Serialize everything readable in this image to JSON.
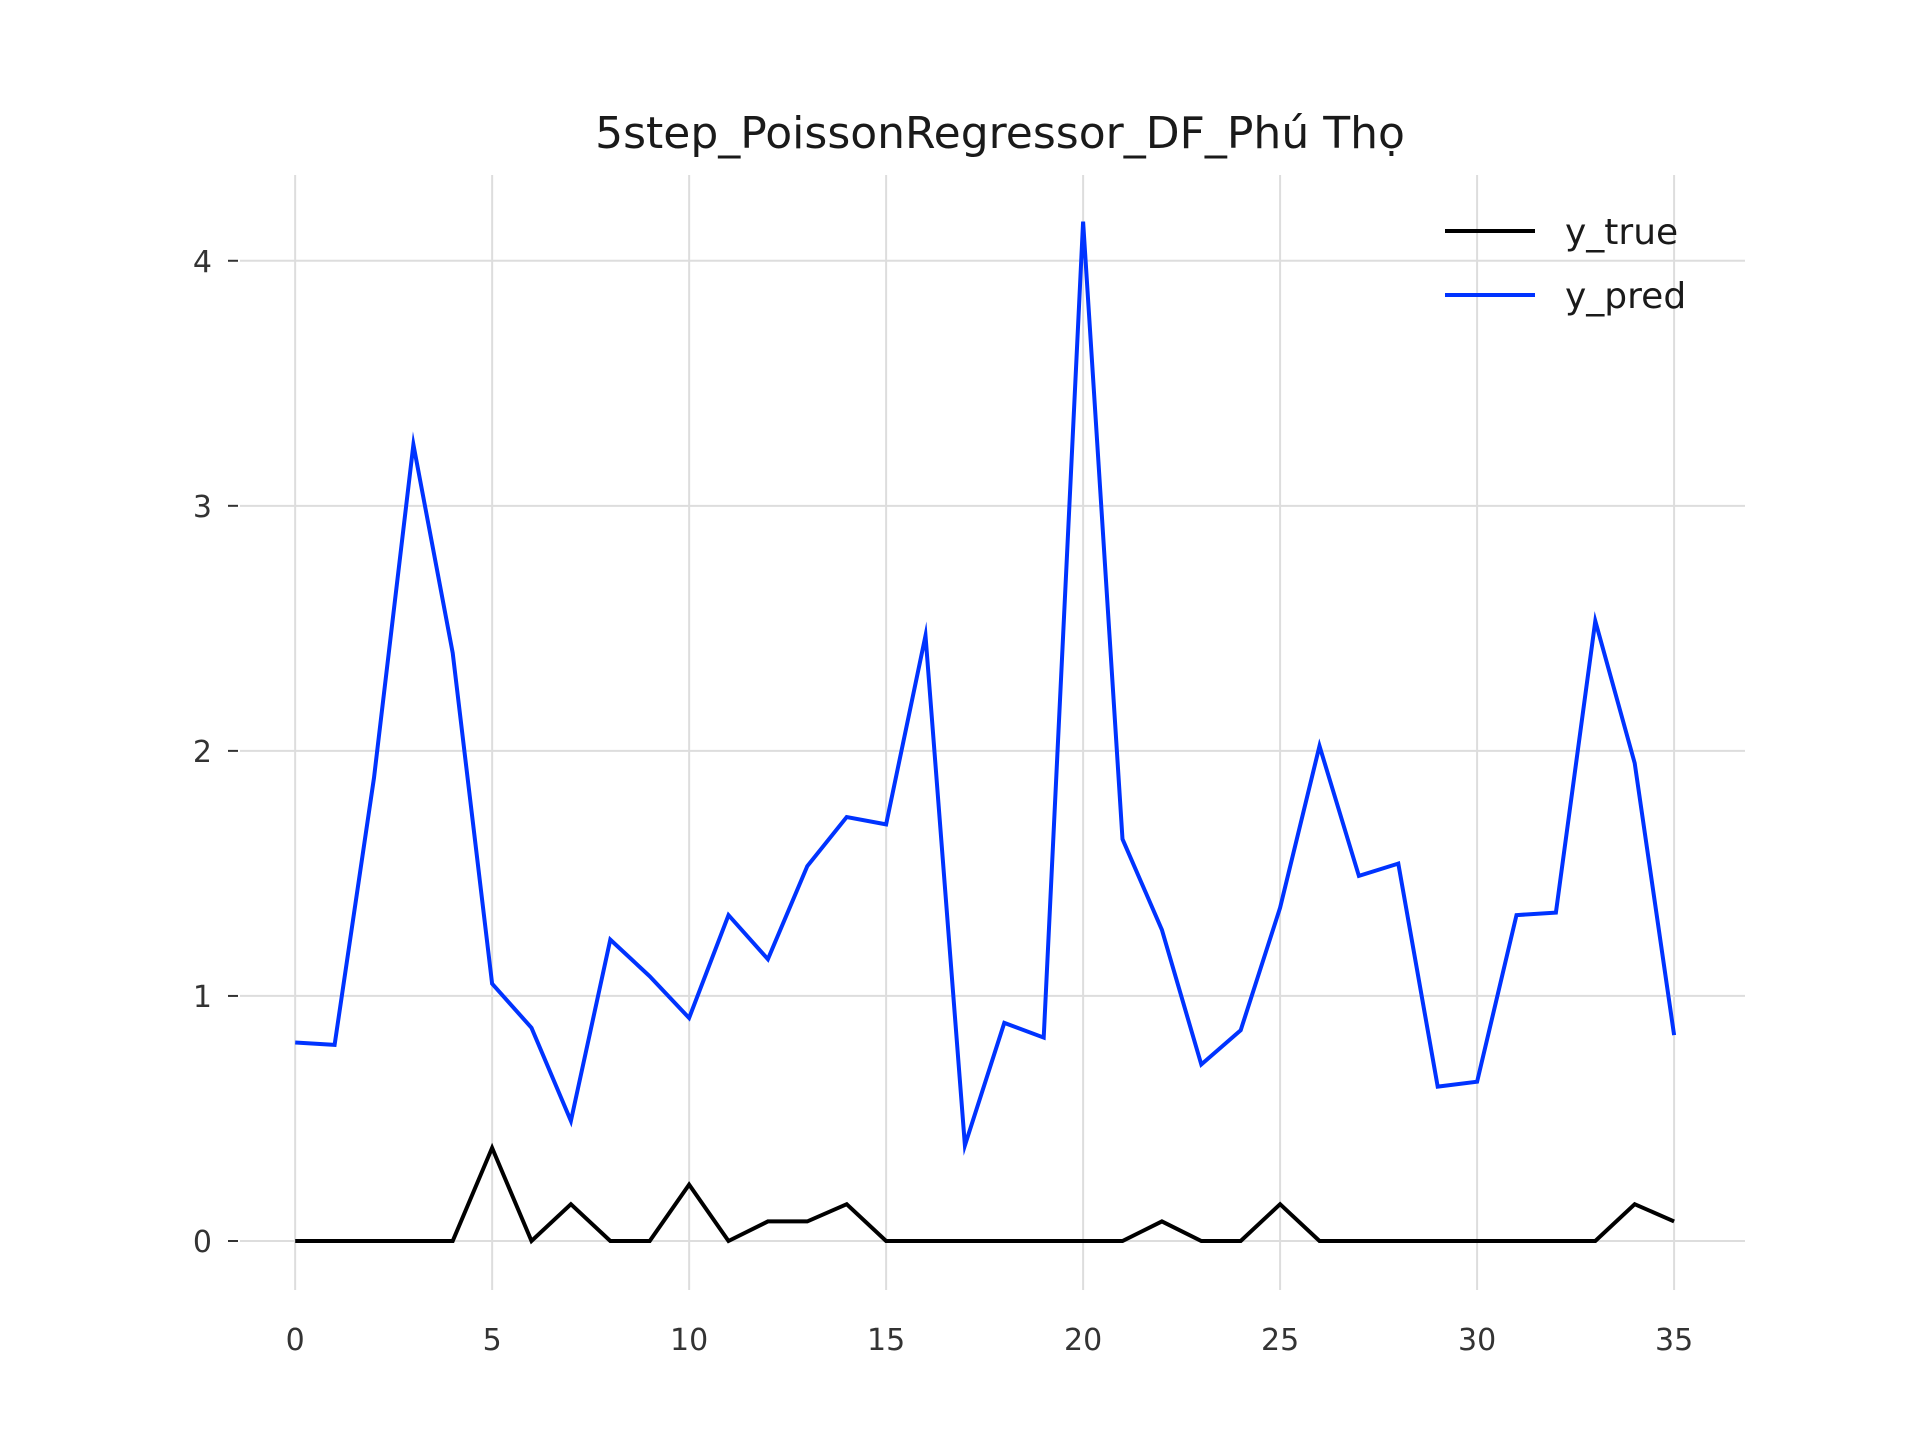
{
  "chart_data": {
    "type": "line",
    "title": "5step_PoissonRegressor_DF_Phú Thọ",
    "xlabel": "",
    "ylabel": "",
    "xlim": [
      -1.4,
      36.8
    ],
    "ylim": [
      -0.2,
      4.35
    ],
    "x_ticks": [
      0,
      5,
      10,
      15,
      20,
      25,
      30,
      35
    ],
    "y_ticks": [
      0,
      1,
      2,
      3,
      4
    ],
    "grid": true,
    "legend_position": "top-right",
    "x": [
      0,
      1,
      2,
      3,
      4,
      5,
      6,
      7,
      8,
      9,
      10,
      11,
      12,
      13,
      14,
      15,
      16,
      17,
      18,
      19,
      20,
      21,
      22,
      23,
      24,
      25,
      26,
      27,
      28,
      29,
      30,
      31,
      32,
      33,
      34,
      35
    ],
    "series": [
      {
        "name": "y_true",
        "color": "#000000",
        "values": [
          0,
          0,
          0,
          0,
          0,
          0.38,
          0,
          0.15,
          0,
          0,
          0.23,
          0,
          0.08,
          0.08,
          0.15,
          0,
          0,
          0,
          0,
          0,
          0,
          0,
          0.08,
          0,
          0,
          0.15,
          0,
          0,
          0,
          0,
          0,
          0,
          0,
          0,
          0.15,
          0.08
        ]
      },
      {
        "name": "y_pred",
        "color": "#0033ff",
        "values": [
          0.81,
          0.8,
          1.89,
          3.25,
          2.4,
          1.05,
          0.87,
          0.49,
          1.23,
          1.08,
          0.91,
          1.33,
          1.15,
          1.53,
          1.73,
          1.7,
          2.47,
          0.39,
          0.89,
          0.83,
          4.16,
          1.64,
          1.27,
          0.72,
          0.86,
          1.36,
          2.02,
          1.49,
          1.54,
          0.63,
          0.65,
          1.33,
          1.34,
          2.53,
          1.95,
          0.84
        ]
      }
    ]
  }
}
